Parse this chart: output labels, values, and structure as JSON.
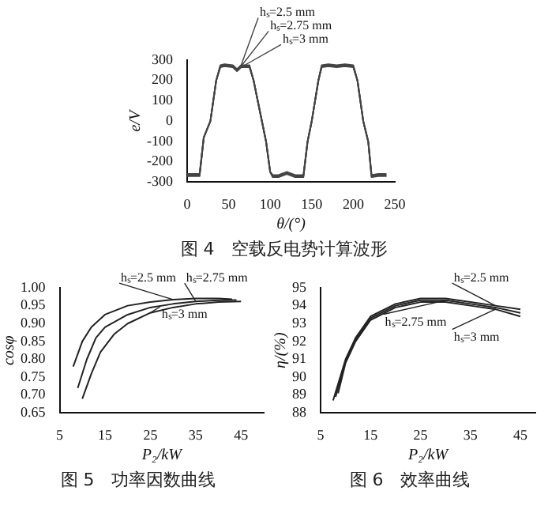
{
  "chart_data": [
    {
      "type": "line",
      "title": "图 4　空载反电势计算波形",
      "xlabel": "θ/(°)",
      "ylabel": "e/V",
      "xlim": [
        0,
        250
      ],
      "xticks": [
        0,
        50,
        100,
        150,
        200,
        250
      ],
      "ylim": [
        -300,
        300
      ],
      "yticks": [
        -300,
        -200,
        -100,
        0,
        100,
        200,
        300
      ],
      "grid": false,
      "legend": "top",
      "x": [
        0,
        10,
        15,
        20,
        28,
        35,
        40,
        45,
        55,
        60,
        65,
        75,
        80,
        90,
        95,
        100,
        103,
        110,
        120,
        130,
        140,
        145,
        150,
        158,
        162,
        170,
        180,
        190,
        200,
        205,
        212,
        218,
        222,
        230,
        240
      ],
      "series": [
        {
          "name": "hₛ=2.5 mm",
          "color": "#444444",
          "values": [
            -270,
            -270,
            -270,
            -80,
            0,
            200,
            275,
            280,
            275,
            255,
            275,
            275,
            200,
            0,
            -100,
            -250,
            -275,
            -275,
            -260,
            -275,
            -275,
            -100,
            0,
            200,
            275,
            280,
            275,
            280,
            275,
            200,
            0,
            -100,
            -275,
            -270,
            -270
          ]
        },
        {
          "name": "hₛ=2.75 mm",
          "color": "#444444",
          "values": [
            -265,
            -265,
            -265,
            -80,
            0,
            200,
            270,
            275,
            270,
            250,
            270,
            270,
            200,
            0,
            -100,
            -250,
            -270,
            -270,
            -255,
            -270,
            -270,
            -100,
            0,
            200,
            270,
            275,
            270,
            275,
            270,
            200,
            0,
            -100,
            -270,
            -265,
            -265
          ]
        },
        {
          "name": "hₛ=3 mm",
          "color": "#444444",
          "values": [
            -260,
            -260,
            -260,
            -80,
            0,
            200,
            265,
            270,
            265,
            245,
            265,
            265,
            200,
            0,
            -100,
            -250,
            -265,
            -265,
            -250,
            -265,
            -265,
            -100,
            0,
            200,
            265,
            270,
            265,
            270,
            265,
            200,
            0,
            -100,
            -265,
            -260,
            -260
          ]
        }
      ]
    },
    {
      "type": "line",
      "title": "图 5　功率因数曲线",
      "xlabel": "P₂/kW",
      "ylabel": "cosφ",
      "xlim": [
        5,
        50
      ],
      "xticks": [
        5,
        15,
        25,
        35,
        45
      ],
      "ylim": [
        0.65,
        1.0
      ],
      "yticks": [
        {
          "value": 0.65,
          "label": "0.65"
        },
        {
          "value": 0.7,
          "label": "0.70"
        },
        {
          "value": 0.75,
          "label": "0.75"
        },
        {
          "value": 0.8,
          "label": "0.80"
        },
        {
          "value": 0.85,
          "label": "0.85"
        },
        {
          "value": 0.9,
          "label": "0.90"
        },
        {
          "value": 0.95,
          "label": "0.95"
        },
        {
          "value": 1.0,
          "label": "1.00"
        }
      ],
      "grid": false,
      "legend": "top right",
      "series": [
        {
          "name": "hₛ=2.5 mm",
          "color": "#222222",
          "x": [
            8,
            10,
            12,
            15,
            20,
            25,
            30,
            35,
            40,
            43
          ],
          "values": [
            0.78,
            0.85,
            0.89,
            0.925,
            0.95,
            0.96,
            0.967,
            0.97,
            0.97,
            0.968
          ]
        },
        {
          "name": "hₛ=2.75 mm",
          "color": "#222222",
          "x": [
            9,
            11,
            13,
            15,
            20,
            25,
            30,
            35,
            40,
            44
          ],
          "values": [
            0.72,
            0.8,
            0.86,
            0.89,
            0.925,
            0.945,
            0.955,
            0.962,
            0.965,
            0.966
          ]
        },
        {
          "name": "hₛ=3 mm",
          "color": "#222222",
          "x": [
            10,
            12,
            14,
            17,
            20,
            25,
            30,
            35,
            40,
            45
          ],
          "values": [
            0.69,
            0.76,
            0.82,
            0.87,
            0.9,
            0.93,
            0.945,
            0.955,
            0.96,
            0.962
          ]
        }
      ]
    },
    {
      "type": "line",
      "title": "图 6　效率曲线",
      "xlabel": "P₂/kW",
      "ylabel": "η/(%)",
      "xlim": [
        5,
        48
      ],
      "xticks": [
        5,
        15,
        25,
        35,
        45
      ],
      "ylim": [
        88,
        95
      ],
      "yticks": [
        88,
        89,
        90,
        91,
        92,
        93,
        94,
        95
      ],
      "grid": false,
      "legend": "top right",
      "series": [
        {
          "name": "hₛ=2.5 mm",
          "color": "#222222",
          "x": [
            7.5,
            10,
            12,
            15,
            20,
            25,
            30,
            35,
            40,
            45
          ],
          "values": [
            88.7,
            91,
            92.2,
            93.4,
            94.1,
            94.4,
            94.4,
            94.2,
            94,
            93.8
          ]
        },
        {
          "name": "hₛ=2.75 mm",
          "color": "#222222",
          "x": [
            8,
            10,
            12,
            15,
            20,
            25,
            30,
            35,
            40,
            45
          ],
          "values": [
            88.9,
            90.9,
            92.1,
            93.3,
            94,
            94.3,
            94.3,
            94.1,
            93.9,
            93.6
          ]
        },
        {
          "name": "hₛ=3 mm",
          "color": "#222222",
          "x": [
            8.5,
            10,
            12,
            15,
            20,
            25,
            30,
            35,
            40,
            45
          ],
          "values": [
            89.1,
            90.8,
            92,
            93.2,
            93.9,
            94.2,
            94.2,
            94,
            93.8,
            93.4
          ]
        }
      ]
    }
  ]
}
